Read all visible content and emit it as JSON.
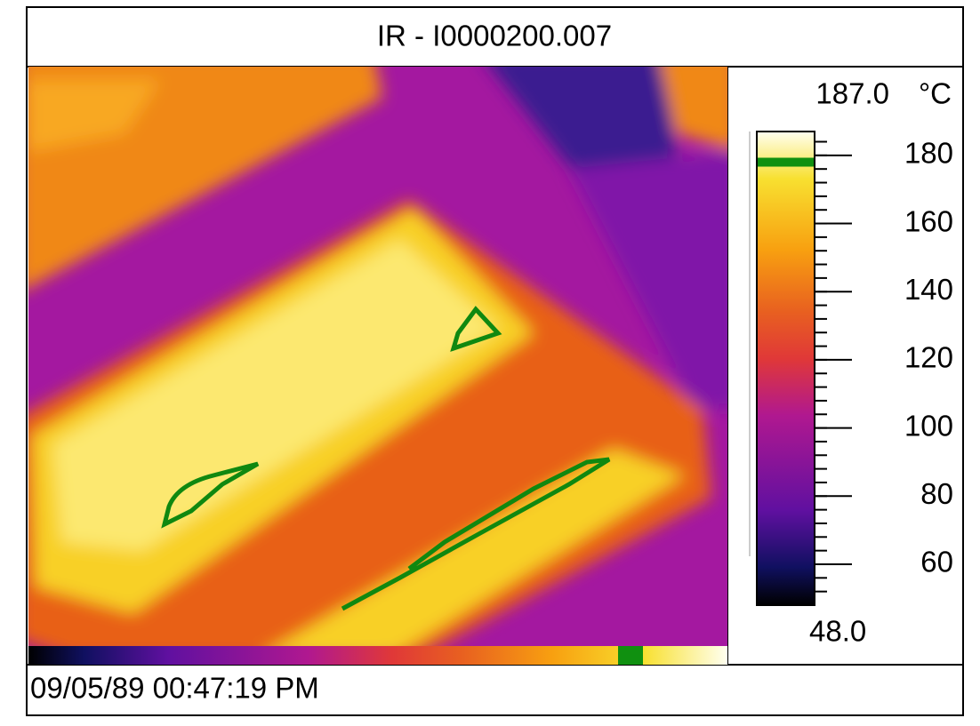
{
  "header": {
    "title": "IR - I0000200.007"
  },
  "scale": {
    "max": {
      "value": 187,
      "label": "187.0"
    },
    "min": {
      "value": 48,
      "label": "48.0"
    },
    "unit": "°C",
    "ticks": [
      180,
      160,
      140,
      120,
      100,
      80,
      60
    ],
    "isotherm": 178
  },
  "footer": {
    "timestamp": "09/05/89 00:47:19 PM"
  }
}
